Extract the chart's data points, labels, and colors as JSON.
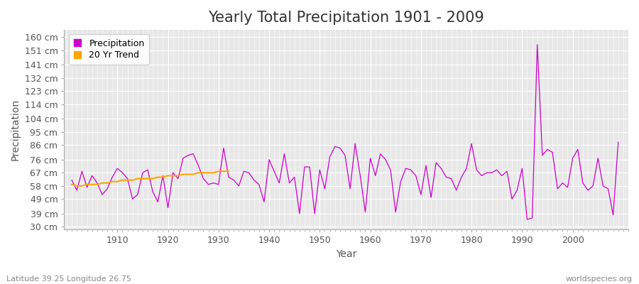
{
  "title": "Yearly Total Precipitation 1901 - 2009",
  "xlabel": "Year",
  "ylabel": "Precipitation",
  "bottom_left_label": "Latitude 39.25 Longitude 26.75",
  "bottom_right_label": "worldspecies.org",
  "years": [
    1901,
    1902,
    1903,
    1904,
    1905,
    1906,
    1907,
    1908,
    1909,
    1910,
    1911,
    1912,
    1913,
    1914,
    1915,
    1916,
    1917,
    1918,
    1919,
    1920,
    1921,
    1922,
    1923,
    1924,
    1925,
    1926,
    1927,
    1928,
    1929,
    1930,
    1931,
    1932,
    1933,
    1934,
    1935,
    1936,
    1937,
    1938,
    1939,
    1940,
    1941,
    1942,
    1943,
    1944,
    1945,
    1946,
    1947,
    1948,
    1949,
    1950,
    1951,
    1952,
    1953,
    1954,
    1955,
    1956,
    1957,
    1958,
    1959,
    1960,
    1961,
    1962,
    1963,
    1964,
    1965,
    1966,
    1967,
    1968,
    1969,
    1970,
    1971,
    1972,
    1973,
    1974,
    1975,
    1976,
    1977,
    1978,
    1979,
    1980,
    1981,
    1982,
    1983,
    1984,
    1985,
    1986,
    1987,
    1988,
    1989,
    1990,
    1991,
    1992,
    1993,
    1994,
    1995,
    1996,
    1997,
    1998,
    1999,
    2000,
    2001,
    2002,
    2003,
    2004,
    2005,
    2006,
    2007,
    2008,
    2009
  ],
  "precipitation": [
    62,
    55,
    68,
    57,
    65,
    60,
    52,
    56,
    64,
    70,
    67,
    63,
    49,
    52,
    67,
    69,
    54,
    47,
    65,
    43,
    67,
    63,
    77,
    79,
    80,
    72,
    63,
    59,
    60,
    59,
    84,
    64,
    62,
    58,
    68,
    67,
    62,
    59,
    47,
    76,
    68,
    60,
    80,
    60,
    64,
    39,
    71,
    71,
    39,
    69,
    56,
    78,
    85,
    84,
    79,
    56,
    87,
    65,
    40,
    77,
    65,
    80,
    76,
    69,
    40,
    61,
    70,
    69,
    65,
    52,
    72,
    50,
    74,
    70,
    64,
    63,
    55,
    64,
    70,
    87,
    69,
    65,
    67,
    67,
    69,
    65,
    68,
    49,
    55,
    70,
    35,
    36,
    155,
    79,
    83,
    81,
    56,
    60,
    57,
    77,
    83,
    60,
    55,
    58,
    77,
    58,
    56,
    38,
    88
  ],
  "trend_years": [
    1901,
    1902,
    1903,
    1904,
    1905,
    1906,
    1907,
    1908,
    1909,
    1910,
    1911,
    1912,
    1913,
    1914,
    1915,
    1916,
    1917,
    1918,
    1919,
    1920,
    1921,
    1922,
    1923,
    1924,
    1925,
    1926,
    1927,
    1928,
    1929,
    1930,
    1931,
    1932
  ],
  "trend_values": [
    59,
    58,
    58,
    59,
    59,
    59,
    60,
    60,
    61,
    61,
    62,
    62,
    62,
    63,
    63,
    63,
    63,
    64,
    64,
    65,
    65,
    65,
    66,
    66,
    66,
    67,
    67,
    67,
    67,
    68,
    68,
    68
  ],
  "precip_color": "#CC00CC",
  "trend_color": "#FFA500",
  "background_color": "#E8E8E8",
  "grid_color": "#FFFFFF",
  "yticks": [
    30,
    39,
    49,
    58,
    67,
    76,
    86,
    95,
    104,
    114,
    123,
    132,
    141,
    151,
    160
  ],
  "ylim": [
    28,
    165
  ],
  "xlim": [
    1899.5,
    2011
  ],
  "xticks": [
    1910,
    1920,
    1930,
    1940,
    1950,
    1960,
    1970,
    1980,
    1990,
    2000
  ],
  "title_fontsize": 15,
  "label_fontsize": 10,
  "tick_fontsize": 9,
  "legend_fontsize": 9
}
